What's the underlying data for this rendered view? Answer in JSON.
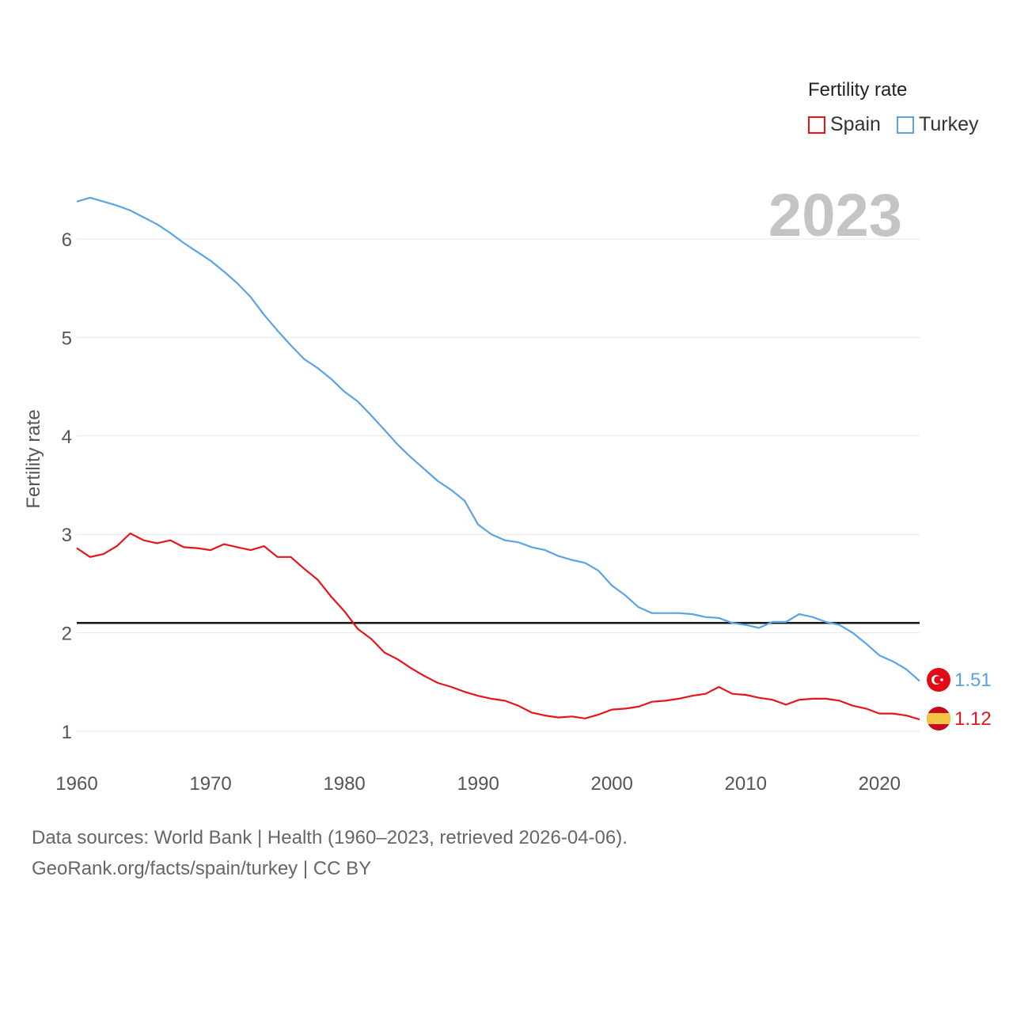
{
  "legend": {
    "title": "Fertility rate",
    "items": [
      {
        "name": "Spain",
        "color": "#e8141c"
      },
      {
        "name": "Turkey",
        "color": "#5aa3e6"
      }
    ]
  },
  "year_label": "2023",
  "source": {
    "line1": "Data sources: World Bank | Health (1960–2023, retrieved 2026-04-06).",
    "line2": "GeoRank.org/facts/spain/turkey | CC BY"
  },
  "end_labels": {
    "Spain": "1.12",
    "Turkey": "1.51"
  },
  "chart_data": {
    "type": "line",
    "title": "Fertility rate",
    "xlabel": "",
    "ylabel": "Fertility rate",
    "xlim": [
      1960,
      2023
    ],
    "ylim": [
      0.75,
      6.5
    ],
    "xticks": [
      1960,
      1970,
      1980,
      1990,
      2000,
      2010,
      2020
    ],
    "yticks": [
      1,
      2,
      3,
      4,
      5,
      6
    ],
    "reference_line": {
      "y": 2.1
    },
    "x": [
      1960,
      1961,
      1962,
      1963,
      1964,
      1965,
      1966,
      1967,
      1968,
      1969,
      1970,
      1971,
      1972,
      1973,
      1974,
      1975,
      1976,
      1977,
      1978,
      1979,
      1980,
      1981,
      1982,
      1983,
      1984,
      1985,
      1986,
      1987,
      1988,
      1989,
      1990,
      1991,
      1992,
      1993,
      1994,
      1995,
      1996,
      1997,
      1998,
      1999,
      2000,
      2001,
      2002,
      2003,
      2004,
      2005,
      2006,
      2007,
      2008,
      2009,
      2010,
      2011,
      2012,
      2013,
      2014,
      2015,
      2016,
      2017,
      2018,
      2019,
      2020,
      2021,
      2022,
      2023
    ],
    "series": [
      {
        "name": "Spain",
        "color": "#e8141c",
        "values": [
          2.86,
          2.77,
          2.8,
          2.88,
          3.01,
          2.94,
          2.91,
          2.94,
          2.87,
          2.86,
          2.84,
          2.9,
          2.87,
          2.84,
          2.88,
          2.77,
          2.77,
          2.65,
          2.54,
          2.37,
          2.22,
          2.04,
          1.94,
          1.8,
          1.73,
          1.64,
          1.56,
          1.49,
          1.45,
          1.4,
          1.36,
          1.33,
          1.31,
          1.26,
          1.19,
          1.16,
          1.14,
          1.15,
          1.13,
          1.17,
          1.22,
          1.23,
          1.25,
          1.3,
          1.31,
          1.33,
          1.36,
          1.38,
          1.45,
          1.38,
          1.37,
          1.34,
          1.32,
          1.27,
          1.32,
          1.33,
          1.33,
          1.31,
          1.26,
          1.23,
          1.18,
          1.18,
          1.16,
          1.12
        ]
      },
      {
        "name": "Turkey",
        "color": "#5aa3e6",
        "values": [
          6.38,
          6.42,
          6.38,
          6.34,
          6.29,
          6.22,
          6.15,
          6.06,
          5.96,
          5.87,
          5.78,
          5.67,
          5.55,
          5.41,
          5.23,
          5.07,
          4.92,
          4.78,
          4.69,
          4.58,
          4.45,
          4.35,
          4.21,
          4.06,
          3.91,
          3.78,
          3.66,
          3.54,
          3.45,
          3.34,
          3.1,
          3.0,
          2.94,
          2.92,
          2.87,
          2.84,
          2.78,
          2.74,
          2.71,
          2.63,
          2.48,
          2.38,
          2.26,
          2.2,
          2.2,
          2.2,
          2.19,
          2.16,
          2.15,
          2.1,
          2.08,
          2.05,
          2.11,
          2.11,
          2.19,
          2.16,
          2.11,
          2.08,
          2.0,
          1.89,
          1.77,
          1.71,
          1.63,
          1.51
        ]
      }
    ]
  }
}
